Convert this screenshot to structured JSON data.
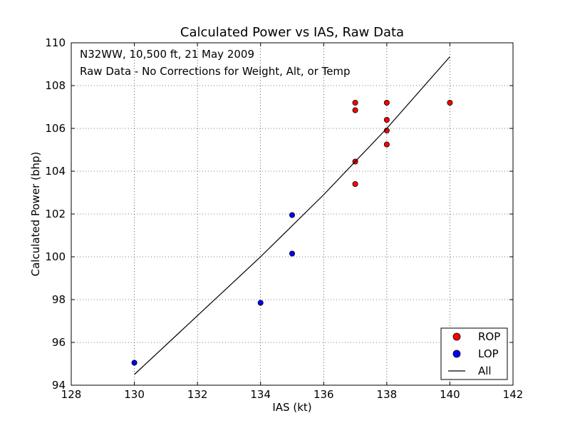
{
  "chart_data": {
    "type": "scatter",
    "title": "Calculated Power vs IAS, Raw Data",
    "xlabel": "IAS (kt)",
    "ylabel": "Calculated Power (bhp)",
    "xlim": [
      128,
      142
    ],
    "ylim": [
      94,
      110
    ],
    "xticks": [
      128,
      130,
      132,
      134,
      136,
      138,
      140,
      142
    ],
    "yticks": [
      94,
      96,
      98,
      100,
      102,
      104,
      106,
      108,
      110
    ],
    "grid": true,
    "legend_position": "bottom-right",
    "annotations": [
      "N32WW, 10,500 ft, 21 May 2009",
      "Raw Data - No Corrections for Weight, Alt, or Temp"
    ],
    "series": [
      {
        "name": "ROP",
        "kind": "scatter",
        "color": "#ff0000",
        "points": [
          {
            "x": 137,
            "y": 107.2
          },
          {
            "x": 137,
            "y": 106.85
          },
          {
            "x": 137,
            "y": 104.45
          },
          {
            "x": 137,
            "y": 103.4
          },
          {
            "x": 138,
            "y": 107.2
          },
          {
            "x": 138,
            "y": 106.4
          },
          {
            "x": 138,
            "y": 105.9
          },
          {
            "x": 138,
            "y": 105.25
          },
          {
            "x": 140,
            "y": 107.2
          }
        ]
      },
      {
        "name": "LOP",
        "kind": "scatter",
        "color": "#0000ff",
        "points": [
          {
            "x": 130,
            "y": 95.05
          },
          {
            "x": 134,
            "y": 97.85
          },
          {
            "x": 135,
            "y": 101.95
          },
          {
            "x": 135,
            "y": 100.15
          }
        ]
      },
      {
        "name": "All",
        "kind": "line",
        "color": "#000000",
        "points": [
          {
            "x": 130,
            "y": 94.5
          },
          {
            "x": 134,
            "y": 100.0
          },
          {
            "x": 136,
            "y": 102.9
          },
          {
            "x": 138,
            "y": 106.0
          },
          {
            "x": 140,
            "y": 109.35
          }
        ]
      }
    ]
  }
}
